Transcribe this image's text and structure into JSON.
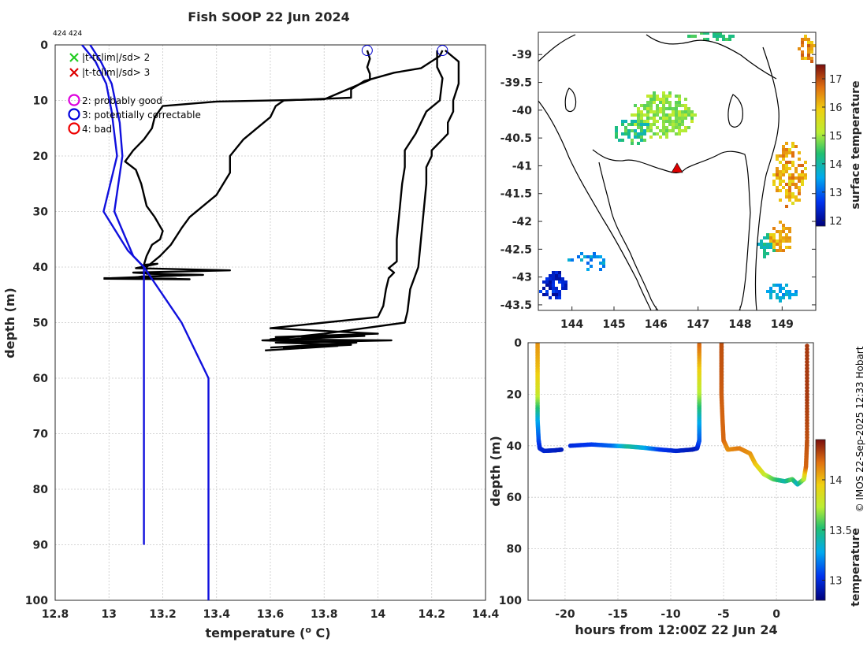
{
  "chart_data": [
    {
      "type": "line",
      "title": "Fish SOOP 22 Jun 2024",
      "ids_text": "424 424",
      "xlabel": "temperature (",
      "xlabel_super": "o",
      "xlabel_end": " C)",
      "ylabel": "depth (m)",
      "xlim": [
        12.8,
        14.4
      ],
      "ylim": [
        100,
        0
      ],
      "xticks": [
        "12.8",
        "13",
        "13.2",
        "13.4",
        "13.6",
        "13.8",
        "14",
        "14.2",
        "14.4"
      ],
      "yticks": [
        "0",
        "10",
        "20",
        "30",
        "40",
        "50",
        "60",
        "70",
        "80",
        "90",
        "100"
      ],
      "legend": [
        {
          "symbol": "x",
          "color": "#22cc22",
          "label": "|t-tclim|/sd> 2"
        },
        {
          "symbol": "x",
          "color": "#dd0000",
          "label": "|t-tclim|/sd> 3"
        },
        {
          "symbol": "o",
          "color": "#dd00dd",
          "label": "2: probably good"
        },
        {
          "symbol": "o",
          "color": "#0000dd",
          "label": "3: potentially correctable"
        },
        {
          "symbol": "o",
          "color": "#ee0000",
          "label": "4: bad"
        }
      ],
      "series": [
        {
          "name": "profile 1",
          "color": "#000000",
          "points": [
            [
              13.96,
              1
            ],
            [
              13.97,
              2.5
            ],
            [
              13.96,
              4
            ],
            [
              13.97,
              5.2
            ],
            [
              13.97,
              6.3
            ],
            [
              13.8,
              9.8
            ],
            [
              13.4,
              10.2
            ],
            [
              13.2,
              11
            ],
            [
              13.17,
              13
            ],
            [
              13.16,
              15
            ],
            [
              13.13,
              17
            ],
            [
              13.09,
              19
            ],
            [
              13.06,
              21
            ],
            [
              13.1,
              22.5
            ],
            [
              13.12,
              25
            ],
            [
              13.13,
              27
            ],
            [
              13.14,
              29
            ],
            [
              13.17,
              31
            ],
            [
              13.2,
              33.5
            ],
            [
              13.19,
              35
            ],
            [
              13.16,
              36
            ],
            [
              13.15,
              37
            ],
            [
              13.14,
              38
            ],
            [
              13.13,
              39.6
            ],
            [
              13.18,
              39.4
            ],
            [
              13.1,
              40.2
            ],
            [
              13.45,
              40.6
            ],
            [
              13.09,
              41.0
            ],
            [
              13.27,
              41.5
            ],
            [
              13.01,
              42.0
            ],
            [
              13.25,
              42.1
            ],
            [
              12.98,
              42.0
            ]
          ]
        },
        {
          "name": "profile 2",
          "color": "#000000",
          "points": [
            [
              14.24,
              1
            ],
            [
              14.23,
              2
            ],
            [
              14.16,
              4.2
            ],
            [
              14.06,
              5
            ],
            [
              13.95,
              6.5
            ],
            [
              13.9,
              8
            ],
            [
              13.9,
              9.5
            ],
            [
              13.65,
              10
            ],
            [
              13.62,
              11
            ],
            [
              13.6,
              13
            ],
            [
              13.55,
              15
            ],
            [
              13.5,
              17
            ],
            [
              13.45,
              20
            ],
            [
              13.45,
              23
            ],
            [
              13.4,
              27
            ],
            [
              13.35,
              29
            ],
            [
              13.3,
              31
            ],
            [
              13.27,
              33
            ],
            [
              13.23,
              36
            ],
            [
              13.19,
              38
            ],
            [
              13.14,
              40
            ],
            [
              13.14,
              41.2
            ],
            [
              13.35,
              41.4
            ],
            [
              13.12,
              41.7
            ],
            [
              13.08,
              42
            ],
            [
              13.3,
              42.2
            ],
            [
              12.98,
              42.1
            ]
          ]
        },
        {
          "name": "profile 3",
          "color": "#000000",
          "points": [
            [
              14.25,
              1
            ],
            [
              14.3,
              3
            ],
            [
              14.3,
              7
            ],
            [
              14.28,
              10
            ],
            [
              14.28,
              12
            ],
            [
              14.26,
              14
            ],
            [
              14.26,
              16
            ],
            [
              14.23,
              17.5
            ],
            [
              14.2,
              19
            ],
            [
              14.2,
              20
            ],
            [
              14.18,
              22
            ],
            [
              14.18,
              25
            ],
            [
              14.17,
              30
            ],
            [
              14.16,
              35
            ],
            [
              14.15,
              40
            ],
            [
              14.12,
              44
            ],
            [
              14.11,
              48
            ],
            [
              14.1,
              50
            ],
            [
              13.95,
              51
            ],
            [
              13.8,
              52
            ],
            [
              13.6,
              53
            ],
            [
              14.05,
              53.2
            ],
            [
              13.62,
              53.6
            ],
            [
              13.9,
              54
            ],
            [
              13.65,
              54.6
            ],
            [
              13.85,
              54.2
            ],
            [
              13.58,
              55
            ]
          ]
        },
        {
          "name": "profile 4",
          "color": "#000000",
          "points": [
            [
              14.22,
              1
            ],
            [
              14.22,
              4
            ],
            [
              14.24,
              6
            ],
            [
              14.23,
              10
            ],
            [
              14.18,
              12
            ],
            [
              14.16,
              14
            ],
            [
              14.14,
              16
            ],
            [
              14.12,
              17.5
            ],
            [
              14.1,
              19
            ],
            [
              14.1,
              22
            ],
            [
              14.09,
              25
            ],
            [
              14.08,
              30
            ],
            [
              14.07,
              35
            ],
            [
              14.07,
              39
            ],
            [
              14.04,
              40.2
            ],
            [
              14.06,
              41
            ],
            [
              14.04,
              42
            ],
            [
              14.03,
              44
            ],
            [
              14.02,
              47
            ],
            [
              14.0,
              49
            ],
            [
              13.8,
              50
            ],
            [
              13.6,
              51
            ],
            [
              14.0,
              52
            ],
            [
              13.62,
              52.6
            ],
            [
              13.95,
              52.4
            ],
            [
              13.57,
              53.2
            ],
            [
              13.92,
              53.6
            ],
            [
              13.6,
              54.5
            ]
          ]
        },
        {
          "name": "climatology 1",
          "color": "#1010dd",
          "points": [
            [
              12.9,
              0
            ],
            [
              12.95,
              3
            ],
            [
              12.99,
              7
            ],
            [
              13.01,
              12
            ],
            [
              13.03,
              20
            ],
            [
              12.98,
              30
            ],
            [
              13.07,
              37
            ],
            [
              13.13,
              40
            ],
            [
              13.13,
              42
            ],
            [
              13.13,
              50
            ],
            [
              13.13,
              60
            ],
            [
              13.13,
              90
            ]
          ]
        },
        {
          "name": "climatology 2",
          "color": "#1010dd",
          "points": [
            [
              12.93,
              0
            ],
            [
              12.97,
              3
            ],
            [
              13.01,
              7
            ],
            [
              13.04,
              14
            ],
            [
              13.05,
              20
            ],
            [
              13.02,
              30
            ],
            [
              13.09,
              38
            ],
            [
              13.13,
              40
            ],
            [
              13.27,
              50
            ],
            [
              13.37,
              60
            ],
            [
              13.37,
              100
            ]
          ]
        }
      ],
      "markers": [
        {
          "shape": "circle",
          "color": "#0000cc",
          "x": 13.96,
          "y": 1
        },
        {
          "shape": "circle",
          "color": "#0000cc",
          "x": 14.24,
          "y": 1
        }
      ]
    },
    {
      "type": "heatmap",
      "title": "",
      "xlabel": "",
      "ylabel": "",
      "xlim": [
        143.2,
        149.8
      ],
      "ylim": [
        -43.6,
        -38.6
      ],
      "xticks": [
        "144",
        "145",
        "146",
        "147",
        "148",
        "149"
      ],
      "yticks": [
        "-39",
        "-39.5",
        "-40",
        "-40.5",
        "-41",
        "-41.5",
        "-42",
        "-42.5",
        "-43",
        "-43.5"
      ],
      "colorbar_label": "surface temperature",
      "colorbar_ticks": [
        "12",
        "13",
        "14",
        "15",
        "16",
        "17"
      ],
      "colorbar_range": [
        11.8,
        17.5
      ],
      "vessel_marker": {
        "lon": 146.5,
        "lat": -41.05,
        "color": "#dd0000"
      }
    },
    {
      "type": "scatter",
      "title": "",
      "xlabel": "hours from 12:00Z 22 Jun 24",
      "ylabel": "depth (m)",
      "xlim": [
        -23.5,
        3.5
      ],
      "ylim": [
        100,
        0
      ],
      "xticks": [
        "-20",
        "-15",
        "-10",
        "-5",
        "0"
      ],
      "yticks": [
        "0",
        "20",
        "40",
        "60",
        "80",
        "100"
      ],
      "colorbar_label": "temperature",
      "colorbar_ticks": [
        "13",
        "13.5",
        "14"
      ],
      "colorbar_range": [
        12.8,
        14.4
      ],
      "traces": [
        {
          "name": "cast 1",
          "points": [
            [
              -22.6,
              0,
              14.1
            ],
            [
              -22.6,
              10,
              14.0
            ],
            [
              -22.6,
              20,
              13.8
            ],
            [
              -22.6,
              30,
              13.3
            ],
            [
              -22.5,
              38,
              13.1
            ],
            [
              -22.4,
              41,
              13.0
            ],
            [
              -22,
              42,
              12.98
            ],
            [
              -21,
              41.8,
              12.95
            ],
            [
              -20.3,
              41.5,
              12.93
            ]
          ]
        },
        {
          "name": "cast 2",
          "points": [
            [
              -19.5,
              40,
              13.0
            ],
            [
              -17.5,
              39.5,
              13.05
            ],
            [
              -15.5,
              40,
              13.15
            ],
            [
              -14,
              40.3,
              13.45
            ],
            [
              -12.5,
              40.8,
              13.3
            ],
            [
              -11,
              41.5,
              13.05
            ],
            [
              -9.5,
              42,
              12.98
            ],
            [
              -8,
              41.5,
              12.93
            ],
            [
              -7.5,
              41,
              12.95
            ],
            [
              -7.3,
              38,
              13.1
            ],
            [
              -7.3,
              30,
              13.3
            ],
            [
              -7.3,
              20,
              13.7
            ],
            [
              -7.3,
              10,
              13.95
            ],
            [
              -7.3,
              0,
              14.2
            ]
          ]
        },
        {
          "name": "cast 3",
          "points": [
            [
              -5.2,
              0,
              14.25
            ],
            [
              -5.2,
              10,
              14.24
            ],
            [
              -5.2,
              20,
              14.22
            ],
            [
              -5.1,
              30,
              14.2
            ],
            [
              -5,
              38,
              14.2
            ],
            [
              -4.6,
              41.5,
              14.1
            ],
            [
              -3.5,
              41,
              14.15
            ],
            [
              -2.5,
              43,
              14.1
            ],
            [
              -2,
              47,
              14.0
            ],
            [
              -1.2,
              51,
              13.8
            ],
            [
              -0.3,
              53,
              13.6
            ],
            [
              0.8,
              53.8,
              13.4
            ],
            [
              1.5,
              53,
              13.6
            ],
            [
              2,
              55,
              13.35
            ],
            [
              2.6,
              53,
              13.7
            ],
            [
              2.8,
              48,
              14.2
            ],
            [
              2.9,
              38,
              14.25
            ],
            [
              2.9,
              20,
              14.3
            ],
            [
              2.9,
              0,
              14.3
            ]
          ]
        }
      ]
    }
  ],
  "copyright": "© IMOS 22-Sep-2025 12:33 Hobart"
}
